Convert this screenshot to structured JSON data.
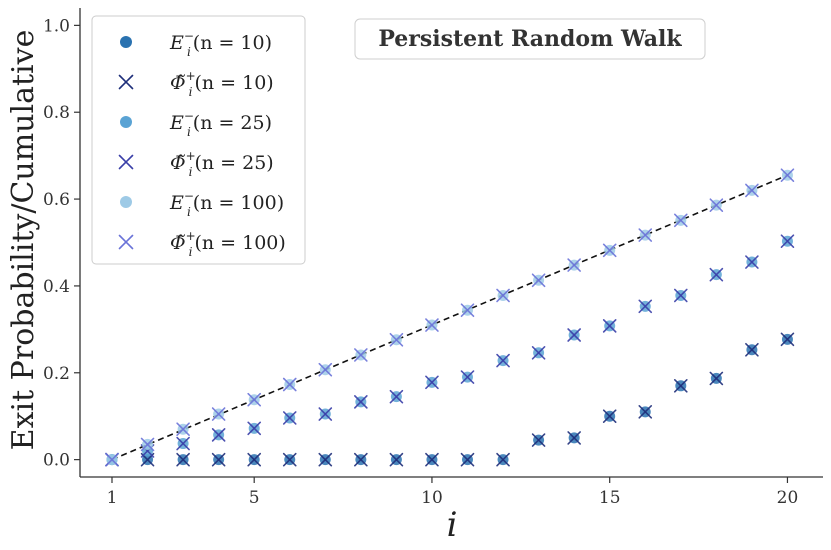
{
  "chart_data": {
    "type": "scatter",
    "title": "Persistent Random Walk",
    "xlabel": "i",
    "ylabel": "Exit Probability/Cumulative",
    "xlim": [
      0.1,
      21
    ],
    "ylim": [
      -0.04,
      1.04
    ],
    "xticks": [
      1,
      5,
      10,
      15,
      20
    ],
    "yticks": [
      0.0,
      0.2,
      0.4,
      0.6,
      0.8,
      1.0
    ],
    "xtick_labels": [
      "1",
      "5",
      "10",
      "15",
      "20"
    ],
    "ytick_labels": [
      "0.0",
      "0.2",
      "0.4",
      "0.6",
      "0.8",
      "1.0"
    ],
    "legend_position": "top-left",
    "grid": false,
    "reference_line": {
      "style": "dashed",
      "color": "#111111",
      "x": [
        1,
        20
      ],
      "y": [
        0.0,
        0.655
      ]
    },
    "series": [
      {
        "name": "E_i^-(n=10)",
        "label_parts": [
          "E",
          "i",
          "−",
          "(n = 10)"
        ],
        "marker": "circle",
        "color": "#2a72b0",
        "x": [
          1,
          2,
          3,
          4,
          5,
          6,
          7,
          8,
          9,
          10,
          11,
          12,
          13,
          14,
          15,
          16,
          17,
          18,
          19,
          20
        ],
        "y": [
          0.0,
          0.0,
          0.0,
          0.0,
          0.0,
          0.0,
          0.0,
          0.0,
          0.0,
          0.0,
          0.0,
          0.0,
          0.045,
          0.05,
          0.1,
          0.11,
          0.17,
          0.187,
          0.253,
          0.277
        ]
      },
      {
        "name": "Φ̃_i^+(n=10)",
        "label_parts": [
          "Φ̃",
          "i",
          "+",
          "(n = 10)"
        ],
        "marker": "x",
        "color": "#1f2f7a",
        "x": [
          1,
          2,
          3,
          4,
          5,
          6,
          7,
          8,
          9,
          10,
          11,
          12,
          13,
          14,
          15,
          16,
          17,
          18,
          19,
          20
        ],
        "y": [
          0.0,
          0.0,
          0.0,
          0.0,
          0.0,
          0.0,
          0.0,
          0.0,
          0.0,
          0.0,
          0.0,
          0.0,
          0.045,
          0.05,
          0.1,
          0.11,
          0.17,
          0.187,
          0.253,
          0.277
        ]
      },
      {
        "name": "E_i^-(n=25)",
        "label_parts": [
          "E",
          "i",
          "−",
          "(n = 25)"
        ],
        "marker": "circle",
        "color": "#5aa3d4",
        "x": [
          1,
          2,
          3,
          4,
          5,
          6,
          7,
          8,
          9,
          10,
          11,
          12,
          13,
          14,
          15,
          16,
          17,
          18,
          19,
          20
        ],
        "y": [
          0.0,
          0.02,
          0.037,
          0.057,
          0.072,
          0.096,
          0.105,
          0.133,
          0.145,
          0.178,
          0.19,
          0.228,
          0.246,
          0.287,
          0.308,
          0.353,
          0.378,
          0.426,
          0.455,
          0.503
        ]
      },
      {
        "name": "Φ̃_i^+(n=25)",
        "label_parts": [
          "Φ̃",
          "i",
          "+",
          "(n = 25)"
        ],
        "marker": "x",
        "color": "#3a3fa8",
        "x": [
          1,
          2,
          3,
          4,
          5,
          6,
          7,
          8,
          9,
          10,
          11,
          12,
          13,
          14,
          15,
          16,
          17,
          18,
          19,
          20
        ],
        "y": [
          0.0,
          0.02,
          0.037,
          0.057,
          0.072,
          0.096,
          0.105,
          0.133,
          0.145,
          0.178,
          0.19,
          0.228,
          0.246,
          0.287,
          0.308,
          0.353,
          0.378,
          0.426,
          0.455,
          0.503
        ]
      },
      {
        "name": "E_i^-(n=100)",
        "label_parts": [
          "E",
          "i",
          "−",
          "(n = 100)"
        ],
        "marker": "circle",
        "color": "#9ecae6",
        "x": [
          1,
          2,
          3,
          4,
          5,
          6,
          7,
          8,
          9,
          10,
          11,
          12,
          13,
          14,
          15,
          16,
          17,
          18,
          19,
          20
        ],
        "y": [
          0.0,
          0.035,
          0.07,
          0.105,
          0.138,
          0.173,
          0.207,
          0.241,
          0.276,
          0.31,
          0.344,
          0.378,
          0.413,
          0.448,
          0.482,
          0.517,
          0.551,
          0.586,
          0.62,
          0.655
        ]
      },
      {
        "name": "Φ̃_i^+(n=100)",
        "label_parts": [
          "Φ̃",
          "i",
          "+",
          "(n = 100)"
        ],
        "marker": "x",
        "color": "#6a73d8",
        "x": [
          1,
          2,
          3,
          4,
          5,
          6,
          7,
          8,
          9,
          10,
          11,
          12,
          13,
          14,
          15,
          16,
          17,
          18,
          19,
          20
        ],
        "y": [
          0.0,
          0.035,
          0.07,
          0.105,
          0.138,
          0.173,
          0.207,
          0.241,
          0.276,
          0.31,
          0.344,
          0.378,
          0.413,
          0.448,
          0.482,
          0.517,
          0.551,
          0.586,
          0.62,
          0.655
        ]
      }
    ]
  }
}
